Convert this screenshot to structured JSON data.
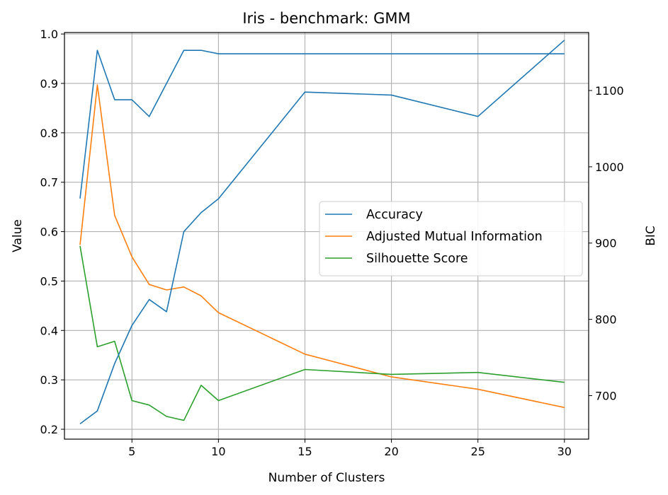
{
  "chart_data": {
    "type": "line",
    "title": "Iris - benchmark: GMM",
    "xlabel": "Number of Clusters",
    "ylabel": "Value",
    "y2label": "BIC",
    "x": [
      2,
      3,
      4,
      5,
      6,
      7,
      8,
      9,
      10,
      15,
      20,
      25,
      30
    ],
    "xticks": [
      5,
      10,
      15,
      20,
      25,
      30
    ],
    "xlim": [
      1.1,
      31.4
    ],
    "ylim": [
      0.18,
      1.003
    ],
    "yticks": [
      0.2,
      0.3,
      0.4,
      0.5,
      0.6,
      0.7,
      0.8,
      0.9,
      1.0
    ],
    "ytick_labels": [
      "0.2",
      "0.3",
      "0.4",
      "0.5",
      "0.6",
      "0.7",
      "0.8",
      "0.9",
      "1.0"
    ],
    "y2lim": [
      643,
      1176
    ],
    "y2ticks": [
      700,
      800,
      900,
      1000,
      1100
    ],
    "grid": true,
    "legend_position": "center-right",
    "series": [
      {
        "name": "Accuracy",
        "axis": "left",
        "color": "#1f77b4",
        "in_legend": true,
        "values": [
          0.667,
          0.967,
          0.867,
          0.867,
          0.833,
          0.9,
          0.967,
          0.967,
          0.96,
          0.96,
          0.96,
          0.96,
          0.96
        ]
      },
      {
        "name": "Adjusted Mutual Information",
        "axis": "left",
        "color": "#ff7f0e",
        "in_legend": true,
        "values": [
          0.573,
          0.897,
          0.633,
          0.549,
          0.493,
          0.482,
          0.488,
          0.47,
          0.436,
          0.352,
          0.306,
          0.281,
          0.244
        ]
      },
      {
        "name": "Silhouette Score",
        "axis": "left",
        "color": "#2ca02c",
        "in_legend": true,
        "values": [
          0.571,
          0.367,
          0.378,
          0.258,
          0.249,
          0.226,
          0.218,
          0.289,
          0.258,
          0.321,
          0.311,
          0.315,
          0.295
        ]
      },
      {
        "name": "",
        "axis": "right",
        "color": "#1f77b4",
        "in_legend": false,
        "values": [
          663,
          680,
          742,
          792,
          826,
          810,
          915,
          940,
          958,
          1098,
          1094,
          1066,
          1166
        ]
      }
    ]
  }
}
